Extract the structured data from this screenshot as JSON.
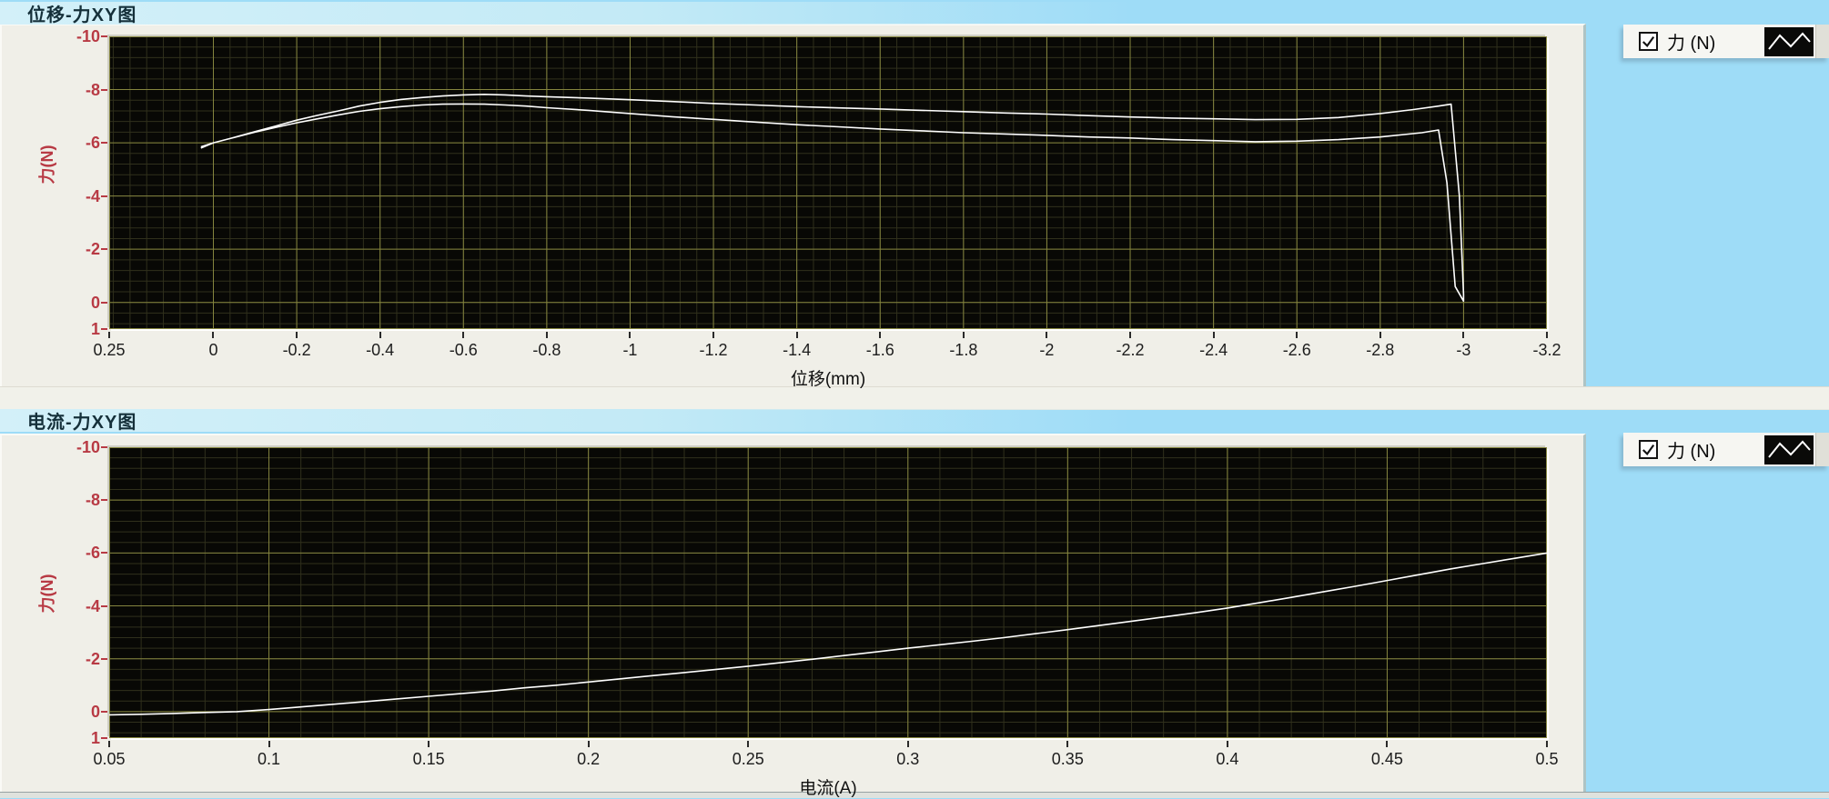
{
  "background_color": "#9edcf7",
  "charts": [
    {
      "title": "位移-力XY图",
      "legend": {
        "label": "力 (N)",
        "checked": true,
        "line_style_icon": "zigzag-line-icon"
      },
      "chart_data": {
        "type": "line",
        "title": "位移-力XY图",
        "xlabel": "位移(mm)",
        "ylabel": "力(N)",
        "xlim": [
          0.25,
          -3.2
        ],
        "ylim": [
          -10,
          1
        ],
        "x_ticks": [
          "0.25",
          "0",
          "-0.2",
          "-0.4",
          "-0.6",
          "-0.8",
          "-1",
          "-1.2",
          "-1.4",
          "-1.6",
          "-1.8",
          "-2",
          "-2.2",
          "-2.4",
          "-2.6",
          "-2.8",
          "-3",
          "-3.2"
        ],
        "y_ticks": [
          "-10",
          "-8",
          "-6",
          "-4",
          "-2",
          "0",
          "1"
        ],
        "grid": true,
        "legend_position": "top-right",
        "colors": {
          "background": "#080805",
          "grid_major": "#85853f",
          "grid_minor": "#30301c"
        },
        "series": [
          {
            "name": "力 (N)",
            "color": "#ffffff",
            "points": [
              [
                0.03,
                -5.8
              ],
              [
                0.0,
                -6.0
              ],
              [
                -0.05,
                -6.2
              ],
              [
                -0.1,
                -6.42
              ],
              [
                -0.15,
                -6.63
              ],
              [
                -0.2,
                -6.85
              ],
              [
                -0.25,
                -7.03
              ],
              [
                -0.3,
                -7.2
              ],
              [
                -0.35,
                -7.38
              ],
              [
                -0.4,
                -7.52
              ],
              [
                -0.45,
                -7.63
              ],
              [
                -0.5,
                -7.7
              ],
              [
                -0.55,
                -7.76
              ],
              [
                -0.6,
                -7.8
              ],
              [
                -0.65,
                -7.82
              ],
              [
                -0.7,
                -7.8
              ],
              [
                -0.75,
                -7.76
              ],
              [
                -0.8,
                -7.73
              ],
              [
                -0.9,
                -7.68
              ],
              [
                -1.0,
                -7.62
              ],
              [
                -1.1,
                -7.55
              ],
              [
                -1.2,
                -7.48
              ],
              [
                -1.3,
                -7.42
              ],
              [
                -1.4,
                -7.36
              ],
              [
                -1.5,
                -7.31
              ],
              [
                -1.6,
                -7.27
              ],
              [
                -1.7,
                -7.22
              ],
              [
                -1.8,
                -7.17
              ],
              [
                -1.9,
                -7.12
              ],
              [
                -2.0,
                -7.08
              ],
              [
                -2.1,
                -7.02
              ],
              [
                -2.2,
                -6.97
              ],
              [
                -2.3,
                -6.93
              ],
              [
                -2.4,
                -6.9
              ],
              [
                -2.5,
                -6.87
              ],
              [
                -2.6,
                -6.88
              ],
              [
                -2.7,
                -6.95
              ],
              [
                -2.8,
                -7.1
              ],
              [
                -2.88,
                -7.25
              ],
              [
                -2.94,
                -7.38
              ],
              [
                -2.97,
                -7.45
              ],
              [
                -2.99,
                -4.0
              ],
              [
                -3.0,
                -0.3
              ],
              [
                -3.0,
                -0.05
              ],
              [
                -2.98,
                -0.6
              ],
              [
                -2.96,
                -4.5
              ],
              [
                -2.94,
                -6.48
              ],
              [
                -2.9,
                -6.38
              ],
              [
                -2.8,
                -6.22
              ],
              [
                -2.7,
                -6.12
              ],
              [
                -2.6,
                -6.06
              ],
              [
                -2.5,
                -6.04
              ],
              [
                -2.4,
                -6.08
              ],
              [
                -2.3,
                -6.12
              ],
              [
                -2.2,
                -6.18
              ],
              [
                -2.1,
                -6.22
              ],
              [
                -2.0,
                -6.28
              ],
              [
                -1.9,
                -6.33
              ],
              [
                -1.8,
                -6.38
              ],
              [
                -1.7,
                -6.45
              ],
              [
                -1.6,
                -6.52
              ],
              [
                -1.5,
                -6.6
              ],
              [
                -1.4,
                -6.68
              ],
              [
                -1.3,
                -6.78
              ],
              [
                -1.2,
                -6.88
              ],
              [
                -1.1,
                -6.98
              ],
              [
                -1.0,
                -7.1
              ],
              [
                -0.9,
                -7.22
              ],
              [
                -0.8,
                -7.32
              ],
              [
                -0.75,
                -7.38
              ],
              [
                -0.7,
                -7.42
              ],
              [
                -0.65,
                -7.45
              ],
              [
                -0.6,
                -7.46
              ],
              [
                -0.55,
                -7.45
              ],
              [
                -0.5,
                -7.42
              ],
              [
                -0.45,
                -7.36
              ],
              [
                -0.4,
                -7.28
              ],
              [
                -0.35,
                -7.18
              ],
              [
                -0.3,
                -7.05
              ],
              [
                -0.25,
                -6.9
              ],
              [
                -0.2,
                -6.75
              ],
              [
                -0.15,
                -6.58
              ],
              [
                -0.1,
                -6.4
              ],
              [
                -0.05,
                -6.2
              ],
              [
                0.0,
                -6.0
              ],
              [
                0.03,
                -5.85
              ]
            ]
          }
        ]
      }
    },
    {
      "title": "电流-力XY图",
      "legend": {
        "label": "力 (N)",
        "checked": true,
        "line_style_icon": "zigzag-line-icon"
      },
      "chart_data": {
        "type": "line",
        "title": "电流-力XY图",
        "xlabel": "电流(A)",
        "ylabel": "力(N)",
        "xlim": [
          0.05,
          0.5
        ],
        "ylim": [
          -10,
          1
        ],
        "x_ticks": [
          "0.05",
          "0.1",
          "0.15",
          "0.2",
          "0.25",
          "0.3",
          "0.35",
          "0.4",
          "0.45",
          "0.5"
        ],
        "y_ticks": [
          "-10",
          "-8",
          "-6",
          "-4",
          "-2",
          "0",
          "1"
        ],
        "grid": true,
        "legend_position": "top-right",
        "colors": {
          "background": "#080805",
          "grid_major": "#85853f",
          "grid_minor": "#30301c"
        },
        "series": [
          {
            "name": "力 (N)",
            "color": "#ffffff",
            "points": [
              [
                0.05,
                0.12
              ],
              [
                0.06,
                0.1
              ],
              [
                0.07,
                0.07
              ],
              [
                0.08,
                0.03
              ],
              [
                0.09,
                0.0
              ],
              [
                0.1,
                -0.08
              ],
              [
                0.11,
                -0.18
              ],
              [
                0.12,
                -0.28
              ],
              [
                0.13,
                -0.38
              ],
              [
                0.14,
                -0.48
              ],
              [
                0.15,
                -0.58
              ],
              [
                0.16,
                -0.68
              ],
              [
                0.17,
                -0.78
              ],
              [
                0.18,
                -0.9
              ],
              [
                0.19,
                -1.0
              ],
              [
                0.2,
                -1.12
              ],
              [
                0.21,
                -1.24
              ],
              [
                0.22,
                -1.36
              ],
              [
                0.23,
                -1.48
              ],
              [
                0.24,
                -1.6
              ],
              [
                0.25,
                -1.72
              ],
              [
                0.26,
                -1.85
              ],
              [
                0.27,
                -1.98
              ],
              [
                0.28,
                -2.12
              ],
              [
                0.29,
                -2.26
              ],
              [
                0.3,
                -2.4
              ],
              [
                0.31,
                -2.53
              ],
              [
                0.32,
                -2.66
              ],
              [
                0.33,
                -2.8
              ],
              [
                0.34,
                -2.95
              ],
              [
                0.35,
                -3.1
              ],
              [
                0.36,
                -3.26
              ],
              [
                0.37,
                -3.42
              ],
              [
                0.38,
                -3.58
              ],
              [
                0.39,
                -3.74
              ],
              [
                0.4,
                -3.92
              ],
              [
                0.41,
                -4.12
              ],
              [
                0.42,
                -4.32
              ],
              [
                0.43,
                -4.53
              ],
              [
                0.44,
                -4.74
              ],
              [
                0.45,
                -4.96
              ],
              [
                0.46,
                -5.18
              ],
              [
                0.47,
                -5.4
              ],
              [
                0.48,
                -5.6
              ],
              [
                0.49,
                -5.8
              ],
              [
                0.5,
                -6.0
              ]
            ]
          }
        ]
      }
    }
  ]
}
